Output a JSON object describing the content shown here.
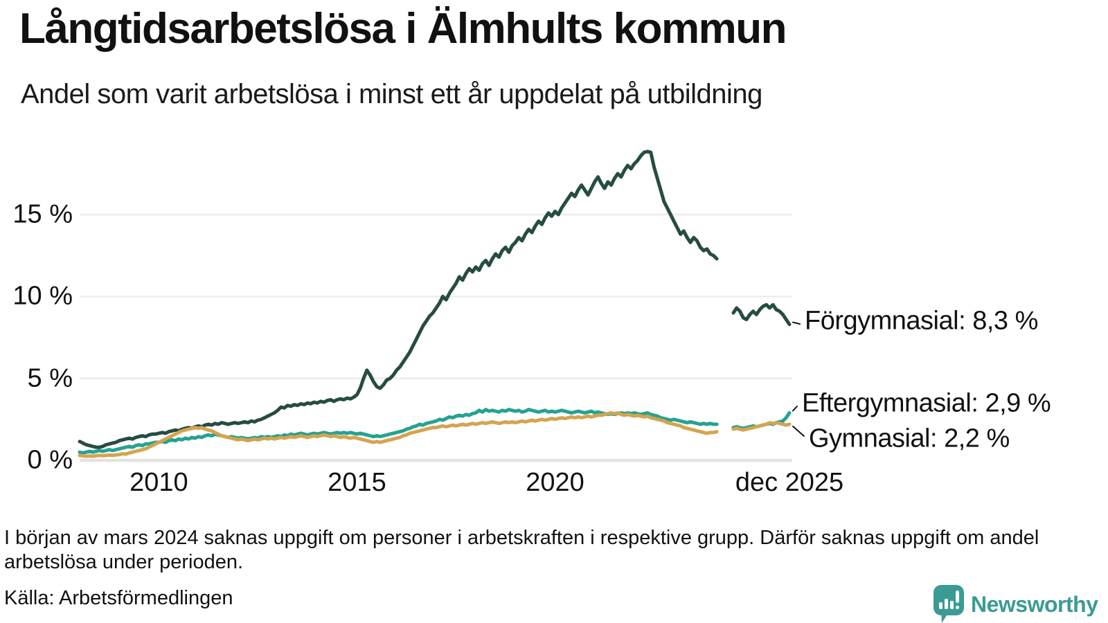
{
  "header": {
    "title": "Långtidsarbetslösa i Älmhults kommun",
    "subtitle": "Andel som varit arbetslösa i minst ett år uppdelat på utbildning"
  },
  "footer": {
    "note": "I början av mars 2024 saknas uppgift om personer i arbetskraften i respektive grupp. Därför saknas uppgift om andel arbetslösa under perioden.",
    "source": "Källa: Arbetsförmedlingen",
    "brand": "Newsworthy"
  },
  "colors": {
    "forgymnasial": "#264c43",
    "eftergymnasial": "#25a292",
    "gymnasial": "#d4a44f",
    "gridline": "#ececec",
    "baseline": "#e2e2e2",
    "brand_teal": "#3a9b94"
  },
  "chart_data": {
    "type": "line",
    "title": "Långtidsarbetslösa i Älmhults kommun",
    "subtitle": "Andel som varit arbetslösa i minst ett år uppdelat på utbildning",
    "xlabel": "",
    "ylabel": "",
    "frequency": "monthly",
    "x_start": "2008-01",
    "x_end": "2025-12",
    "missing_period_shown_as_gap": "2024-03 to 2024-06",
    "ylim": [
      0,
      19.8
    ],
    "grid": "horizontal",
    "yticks": [
      {
        "value": 0,
        "label": "0 %"
      },
      {
        "value": 5,
        "label": "5 %"
      },
      {
        "value": 10,
        "label": "10 %"
      },
      {
        "value": 15,
        "label": "15 %"
      }
    ],
    "xticks": [
      {
        "year": 2010,
        "label": "2010"
      },
      {
        "year": 2015,
        "label": "2015"
      },
      {
        "year": 2020,
        "label": "2020"
      },
      {
        "year": 2025.917,
        "label": "dec 2025"
      }
    ],
    "series": [
      {
        "name": "Förgymnasial",
        "end_label": "Förgymnasial: 8,3 %",
        "end_value": 8.3,
        "color": "#264c43",
        "values": [
          1.15,
          1.05,
          0.95,
          0.9,
          0.85,
          0.8,
          0.8,
          0.85,
          0.95,
          1.0,
          1.05,
          1.1,
          1.2,
          1.25,
          1.3,
          1.35,
          1.3,
          1.4,
          1.45,
          1.5,
          1.45,
          1.55,
          1.6,
          1.6,
          1.65,
          1.7,
          1.65,
          1.75,
          1.8,
          1.85,
          1.8,
          1.9,
          1.95,
          2.0,
          1.95,
          2.05,
          2.1,
          2.05,
          2.15,
          2.2,
          2.15,
          2.25,
          2.2,
          2.3,
          2.25,
          2.2,
          2.25,
          2.3,
          2.25,
          2.3,
          2.35,
          2.3,
          2.4,
          2.35,
          2.45,
          2.5,
          2.6,
          2.7,
          2.8,
          2.9,
          3.05,
          3.25,
          3.2,
          3.35,
          3.3,
          3.4,
          3.35,
          3.45,
          3.4,
          3.5,
          3.45,
          3.55,
          3.5,
          3.6,
          3.55,
          3.65,
          3.7,
          3.6,
          3.7,
          3.75,
          3.7,
          3.8,
          3.75,
          3.85,
          4.0,
          4.4,
          5.0,
          5.5,
          5.2,
          4.8,
          4.5,
          4.4,
          4.6,
          4.9,
          5.0,
          5.2,
          5.5,
          5.7,
          6.0,
          6.3,
          6.6,
          7.0,
          7.4,
          7.8,
          8.2,
          8.5,
          8.8,
          9.0,
          9.3,
          9.6,
          10.0,
          9.8,
          10.2,
          10.5,
          10.8,
          11.2,
          11.0,
          11.4,
          11.7,
          11.5,
          11.8,
          11.6,
          12.0,
          12.2,
          11.9,
          12.3,
          12.6,
          12.4,
          12.8,
          13.0,
          12.7,
          13.1,
          13.3,
          13.6,
          13.4,
          13.8,
          14.1,
          13.9,
          14.3,
          14.6,
          14.4,
          14.8,
          15.1,
          14.9,
          15.2,
          15.0,
          15.4,
          15.7,
          16.0,
          16.3,
          16.1,
          16.5,
          16.8,
          16.5,
          16.2,
          16.6,
          17.0,
          17.3,
          16.9,
          16.6,
          17.0,
          16.8,
          17.2,
          17.5,
          17.3,
          17.7,
          18.0,
          17.8,
          18.1,
          18.3,
          18.6,
          18.8,
          18.85,
          18.8,
          17.9,
          17.2,
          16.5,
          15.8,
          15.4,
          15.0,
          14.6,
          14.2,
          13.8,
          14.0,
          13.6,
          13.3,
          13.6,
          13.4,
          13.0,
          12.8,
          12.9,
          12.6,
          12.5,
          12.3,
          null,
          null,
          null,
          null,
          9.0,
          9.3,
          9.1,
          8.7,
          8.6,
          8.9,
          9.1,
          8.9,
          9.2,
          9.4,
          9.5,
          9.3,
          9.5,
          9.2,
          9.1,
          8.9,
          8.6,
          8.3
        ]
      },
      {
        "name": "Eftergymnasial",
        "end_label": "Eftergymnasial: 2,9 %",
        "end_value": 2.9,
        "color": "#25a292",
        "values": [
          0.5,
          0.45,
          0.5,
          0.55,
          0.5,
          0.55,
          0.6,
          0.55,
          0.6,
          0.65,
          0.6,
          0.65,
          0.7,
          0.75,
          0.8,
          0.85,
          0.8,
          0.9,
          0.95,
          0.9,
          1.0,
          1.0,
          1.05,
          1.1,
          1.1,
          1.15,
          1.1,
          1.2,
          1.25,
          1.2,
          1.3,
          1.25,
          1.35,
          1.3,
          1.4,
          1.35,
          1.45,
          1.4,
          1.5,
          1.55,
          1.5,
          1.6,
          1.55,
          1.5,
          1.45,
          1.4,
          1.45,
          1.4,
          1.35,
          1.4,
          1.35,
          1.3,
          1.35,
          1.4,
          1.35,
          1.45,
          1.4,
          1.45,
          1.4,
          1.45,
          1.5,
          1.45,
          1.55,
          1.5,
          1.6,
          1.55,
          1.6,
          1.65,
          1.6,
          1.55,
          1.6,
          1.65,
          1.6,
          1.65,
          1.7,
          1.65,
          1.6,
          1.65,
          1.7,
          1.65,
          1.7,
          1.65,
          1.7,
          1.65,
          1.6,
          1.65,
          1.6,
          1.55,
          1.5,
          1.45,
          1.5,
          1.45,
          1.5,
          1.55,
          1.6,
          1.65,
          1.7,
          1.75,
          1.8,
          1.9,
          1.95,
          2.05,
          2.1,
          2.2,
          2.15,
          2.25,
          2.3,
          2.35,
          2.4,
          2.5,
          2.45,
          2.55,
          2.65,
          2.6,
          2.7,
          2.75,
          2.7,
          2.8,
          2.75,
          2.85,
          2.9,
          3.05,
          2.95,
          3.1,
          3.0,
          3.05,
          3.0,
          2.95,
          3.05,
          3.0,
          3.1,
          3.05,
          3.0,
          3.05,
          2.95,
          3.0,
          3.1,
          3.05,
          3.0,
          2.95,
          3.0,
          3.05,
          2.95,
          3.0,
          2.95,
          3.0,
          3.05,
          3.0,
          2.95,
          2.9,
          2.95,
          3.0,
          2.95,
          2.9,
          2.95,
          3.0,
          2.9,
          2.95,
          2.9,
          2.85,
          2.8,
          2.85,
          2.8,
          2.85,
          2.9,
          2.85,
          2.9,
          2.85,
          2.9,
          2.85,
          2.8,
          2.85,
          2.9,
          2.8,
          2.75,
          2.7,
          2.6,
          2.55,
          2.5,
          2.45,
          2.5,
          2.45,
          2.4,
          2.35,
          2.3,
          2.35,
          2.3,
          2.25,
          2.2,
          2.25,
          2.2,
          2.25,
          2.2,
          2.2,
          null,
          null,
          null,
          null,
          2.0,
          2.05,
          2.0,
          1.95,
          2.0,
          2.05,
          2.1,
          2.05,
          2.1,
          2.15,
          2.2,
          2.25,
          2.2,
          2.3,
          2.35,
          2.4,
          2.6,
          2.9
        ]
      },
      {
        "name": "Gymnasial",
        "end_label": "Gymnasial: 2,2 %",
        "end_value": 2.2,
        "color": "#d4a44f",
        "values": [
          0.3,
          0.28,
          0.25,
          0.27,
          0.25,
          0.28,
          0.3,
          0.28,
          0.3,
          0.32,
          0.3,
          0.33,
          0.35,
          0.4,
          0.38,
          0.45,
          0.5,
          0.55,
          0.6,
          0.65,
          0.7,
          0.8,
          0.9,
          1.0,
          1.1,
          1.2,
          1.3,
          1.4,
          1.5,
          1.6,
          1.7,
          1.8,
          1.85,
          1.9,
          1.95,
          2.0,
          1.95,
          2.0,
          1.9,
          1.85,
          1.8,
          1.7,
          1.6,
          1.5,
          1.45,
          1.4,
          1.35,
          1.3,
          1.25,
          1.3,
          1.25,
          1.2,
          1.25,
          1.3,
          1.25,
          1.3,
          1.35,
          1.3,
          1.35,
          1.3,
          1.35,
          1.4,
          1.35,
          1.4,
          1.45,
          1.4,
          1.45,
          1.5,
          1.45,
          1.4,
          1.45,
          1.5,
          1.45,
          1.5,
          1.55,
          1.5,
          1.45,
          1.5,
          1.45,
          1.4,
          1.45,
          1.4,
          1.35,
          1.4,
          1.35,
          1.3,
          1.25,
          1.2,
          1.15,
          1.1,
          1.15,
          1.1,
          1.15,
          1.2,
          1.25,
          1.3,
          1.35,
          1.4,
          1.5,
          1.55,
          1.65,
          1.7,
          1.75,
          1.8,
          1.85,
          1.9,
          1.95,
          2.0,
          2.0,
          2.05,
          2.1,
          2.05,
          2.1,
          2.15,
          2.1,
          2.15,
          2.2,
          2.15,
          2.2,
          2.25,
          2.2,
          2.25,
          2.3,
          2.25,
          2.3,
          2.35,
          2.3,
          2.25,
          2.3,
          2.35,
          2.3,
          2.35,
          2.3,
          2.35,
          2.4,
          2.35,
          2.4,
          2.45,
          2.4,
          2.45,
          2.5,
          2.45,
          2.5,
          2.55,
          2.5,
          2.55,
          2.6,
          2.55,
          2.6,
          2.65,
          2.6,
          2.65,
          2.6,
          2.65,
          2.7,
          2.65,
          2.7,
          2.75,
          2.75,
          2.8,
          2.85,
          2.9,
          2.85,
          2.9,
          2.8,
          2.75,
          2.8,
          2.75,
          2.7,
          2.75,
          2.7,
          2.65,
          2.7,
          2.6,
          2.55,
          2.5,
          2.45,
          2.4,
          2.3,
          2.25,
          2.2,
          2.15,
          2.1,
          2.0,
          1.95,
          1.9,
          1.85,
          1.8,
          1.75,
          1.7,
          1.65,
          1.7,
          1.7,
          1.75,
          null,
          null,
          null,
          null,
          1.9,
          1.95,
          1.9,
          1.85,
          1.9,
          1.95,
          2.0,
          2.05,
          2.1,
          2.15,
          2.2,
          2.3,
          2.25,
          2.3,
          2.25,
          2.2,
          2.15,
          2.2
        ]
      }
    ]
  }
}
